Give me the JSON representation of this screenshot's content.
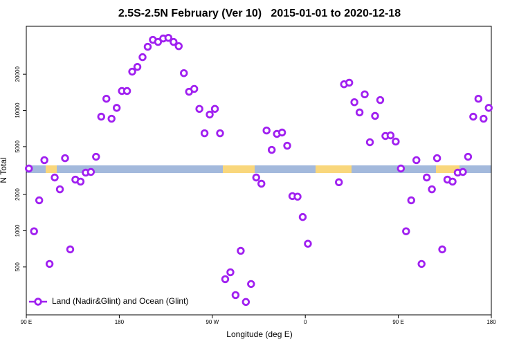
{
  "chart_data": {
    "type": "scatter",
    "title": "2.5S-2.5N February (Ver 10)   2015-01-01 to 2020-12-18",
    "x_label": "Longitude (deg E)",
    "y_label": "N Total",
    "log_y": true,
    "legend_position": "lower left",
    "xlim": [
      90,
      540
    ],
    "xticks": [
      {
        "value": 90,
        "label": "90 E"
      },
      180,
      {
        "value": 270,
        "label": "90 W"
      },
      {
        "value": 360,
        "label": "0"
      },
      {
        "value": 450,
        "label": "90 E"
      },
      {
        "value": 540,
        "label": "180"
      }
    ],
    "ylim": [
      200,
      50000
    ],
    "yticks": [
      500,
      1000,
      2000,
      5000,
      10000,
      20000
    ],
    "series": [
      {
        "name": "Land (Nadir&Glint) and Ocean (Glint)",
        "color": "#a020f0",
        "x": [
          92.5,
          97.5,
          102.5,
          107.5,
          112.5,
          117.5,
          122.5,
          127.5,
          132.5,
          137.5,
          142.5,
          147.5,
          152.5,
          157.5,
          162.5,
          167.5,
          172.5,
          177.5,
          182.5,
          187.5,
          192.5,
          197.5,
          202.5,
          207.5,
          212.5,
          217.5,
          222.5,
          227.5,
          232.5,
          237.5,
          242.5,
          247.5,
          252.5,
          257.5,
          262.5,
          267.5,
          272.5,
          277.5,
          282.5,
          287.5,
          292.5,
          297.5,
          302.5,
          307.5,
          312.5,
          317.5,
          322.5,
          327.5,
          332.5,
          337.5,
          342.5,
          347.5,
          352.5,
          357.5,
          362.5,
          392.5,
          397.5,
          402.5,
          407.5,
          412.5,
          417.5,
          422.5,
          427.5,
          432.5,
          437.5,
          442.5,
          447.5,
          452.5,
          457.5,
          462.5,
          467.5,
          472.5,
          477.5,
          482.5,
          487.5,
          492.5,
          497.5,
          502.5,
          507.5,
          512.5,
          517.5,
          522.5,
          527.5,
          532.5,
          537.5
        ],
        "values": [
          3290,
          990,
          1790,
          3860,
          530,
          2770,
          2210,
          4010,
          700,
          2660,
          2560,
          3040,
          3080,
          4120,
          8870,
          12500,
          8530,
          10500,
          14500,
          14500,
          21000,
          23000,
          27700,
          33800,
          38600,
          37100,
          39600,
          40100,
          37100,
          34200,
          20400,
          14300,
          15100,
          10300,
          6460,
          9240,
          10300,
          6460,
          396,
          452,
          292,
          681,
          256,
          361,
          2770,
          2460,
          6810,
          4700,
          6380,
          6550,
          5090,
          1940,
          1920,
          1300,
          780,
          2530,
          16500,
          17000,
          11700,
          9620,
          13600,
          5440,
          9000,
          12200,
          6130,
          6200,
          5510,
          3290,
          990,
          1790,
          3860,
          530,
          2770,
          2210,
          4010,
          700,
          2660,
          2560,
          3040,
          3080,
          4120,
          8870,
          12500,
          8530,
          10500
        ]
      }
    ]
  }
}
